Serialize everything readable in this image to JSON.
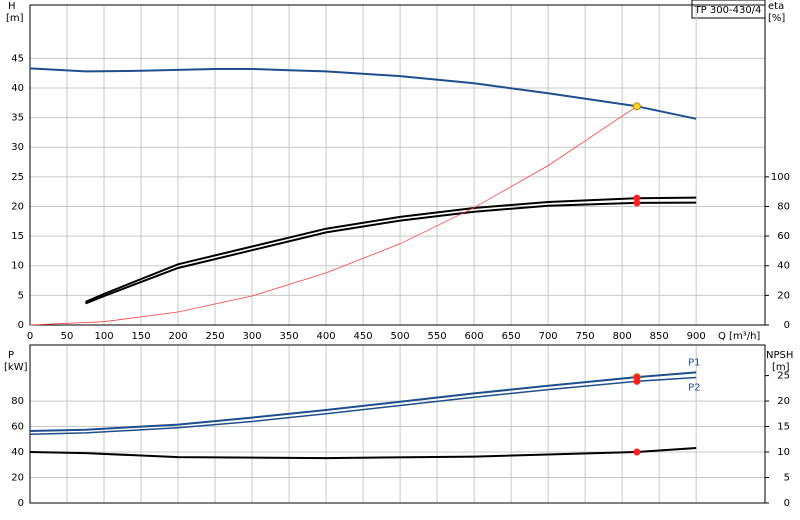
{
  "chart_data": [
    {
      "type": "line",
      "title": "TP 300-430/4",
      "x_label": "Q [m³/h]",
      "y_label": "H",
      "y_unit": "[m]",
      "y2_label": "eta",
      "y2_unit": "[%]",
      "xlim": [
        0,
        993
      ],
      "xticks": [
        0,
        50,
        100,
        150,
        200,
        250,
        300,
        350,
        400,
        450,
        500,
        550,
        600,
        650,
        700,
        750,
        800,
        850,
        900
      ],
      "show_xtick_labels": true,
      "ylim": [
        0,
        54
      ],
      "yticks": [
        0,
        5,
        10,
        15,
        20,
        25,
        30,
        35,
        40,
        45
      ],
      "y2lim": [
        0,
        216
      ],
      "y2ticks": [
        0,
        20,
        40,
        60,
        80,
        100
      ],
      "grid": true,
      "series": [
        {
          "color": "#1f4e8c",
          "width": 2,
          "x": [
            0,
            75,
            150,
            250,
            300,
            350,
            400,
            500,
            600,
            700,
            820,
            900
          ],
          "values": [
            43.3,
            42.8,
            42.9,
            43.2,
            43.2,
            43.0,
            42.8,
            42.0,
            40.8,
            39.1,
            36.9,
            34.8
          ]
        },
        {
          "color": "#000000",
          "width": 2,
          "axis": "y2",
          "x": [
            75,
            100,
            200,
            300,
            400,
            500,
            600,
            700,
            820,
            900
          ],
          "values": [
            15.6,
            21,
            41,
            53,
            65,
            73,
            79,
            83,
            85.6,
            86
          ]
        },
        {
          "color": "#000000",
          "width": 2,
          "axis": "y2",
          "x": [
            75,
            100,
            200,
            300,
            400,
            500,
            600,
            700,
            820,
            900
          ],
          "values": [
            14.5,
            19.5,
            38.5,
            50.5,
            62.5,
            70.5,
            76.5,
            80.5,
            82.4,
            82.6
          ]
        },
        {
          "color": "#ff4040",
          "width": 0.8,
          "x": [
            0,
            100,
            200,
            300,
            400,
            500,
            600,
            700,
            820
          ],
          "values": [
            0,
            0.55,
            2.2,
            4.9,
            8.8,
            13.7,
            19.8,
            26.9,
            36.9
          ]
        }
      ],
      "points": [
        {
          "x": 820,
          "y": 36.9,
          "color": "#ffd21f"
        },
        {
          "x": 820,
          "y": 85.6,
          "color": "#ff2020",
          "axis": "y2"
        },
        {
          "x": 820,
          "y": 82.4,
          "color": "#ff2020",
          "axis": "y2"
        }
      ]
    },
    {
      "type": "line",
      "y_label": "P",
      "y_unit": "[kW]",
      "y2_label": "NPSH",
      "y2_unit": "[m]",
      "xlim": [
        0,
        993
      ],
      "xticks": [
        0,
        50,
        100,
        150,
        200,
        250,
        300,
        350,
        400,
        450,
        500,
        550,
        600,
        650,
        700,
        750,
        800,
        850,
        900
      ],
      "show_xtick_labels": false,
      "ylim": [
        0,
        124
      ],
      "yticks": [
        0,
        20,
        40,
        60,
        80
      ],
      "y2lim": [
        0,
        31
      ],
      "y2ticks": [
        0,
        5,
        10,
        15,
        20,
        25
      ],
      "grid": true,
      "series": [
        {
          "name": "P1",
          "color": "#1f4e8c",
          "width": 2,
          "x": [
            0,
            75,
            200,
            300,
            400,
            500,
            600,
            700,
            820,
            900
          ],
          "values": [
            56.5,
            57.5,
            61.5,
            67,
            73,
            79.5,
            86,
            92,
            98.8,
            102.5
          ]
        },
        {
          "name": "P2",
          "color": "#1f4e8c",
          "width": 1.5,
          "x": [
            0,
            75,
            200,
            300,
            400,
            500,
            600,
            700,
            820,
            900
          ],
          "values": [
            54,
            55,
            59,
            64,
            70,
            76.5,
            83,
            89,
            95.5,
            98.5
          ]
        },
        {
          "color": "#000000",
          "width": 2,
          "axis": "y2",
          "x": [
            0,
            75,
            200,
            400,
            600,
            820,
            900
          ],
          "values": [
            10,
            9.8,
            9.0,
            8.8,
            9.1,
            10,
            10.8
          ]
        }
      ],
      "points": [
        {
          "x": 820,
          "y": 98.8,
          "color": "#ff2020"
        },
        {
          "x": 820,
          "y": 95.5,
          "color": "#ff2020"
        },
        {
          "x": 820,
          "y": 10,
          "color": "#ff2020",
          "axis": "y2"
        }
      ]
    }
  ]
}
